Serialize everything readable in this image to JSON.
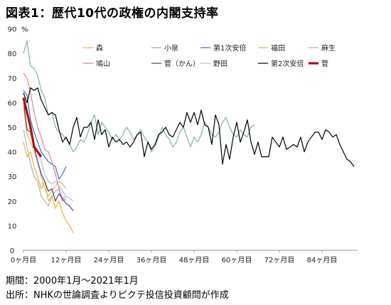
{
  "title": "図表1：歴代10代の政権の内閣支持率",
  "notes": {
    "period": "期間：2000年1月～2021年1月",
    "source": "出所：NHKの世論調査よりピクテ投信投資顧問が作成"
  },
  "chart_data": {
    "type": "line",
    "title": "図表1：歴代10代の政権の内閣支持率",
    "ylabel": "%",
    "xlabel": "",
    "ylim": [
      0,
      90
    ],
    "yticks": [
      0,
      10,
      20,
      30,
      40,
      50,
      60,
      70,
      80,
      90
    ],
    "xlim": [
      0,
      94
    ],
    "xticks": [
      {
        "value": 0,
        "label": "0ヶ月目"
      },
      {
        "value": 12,
        "label": "12ヶ月目"
      },
      {
        "value": 24,
        "label": "24ヶ月目"
      },
      {
        "value": 36,
        "label": "36ヶ月目"
      },
      {
        "value": 48,
        "label": "48ヶ月目"
      },
      {
        "value": 60,
        "label": "60ヶ月目"
      },
      {
        "value": 72,
        "label": "72ヶ月目"
      },
      {
        "value": 84,
        "label": "84ヶ月目"
      }
    ],
    "grid": false,
    "legend_position": "top",
    "series": [
      {
        "name": "森",
        "color": "#f0b429",
        "width": 1.2,
        "values": [
          44,
          38,
          40,
          34,
          30,
          25,
          28,
          20,
          22,
          17,
          20,
          15,
          12,
          10,
          7
        ]
      },
      {
        "name": "小泉",
        "color": "#7fb0a8",
        "width": 1.2,
        "values": [
          80,
          85,
          75,
          74,
          71,
          65,
          62,
          55,
          56,
          50,
          48,
          47,
          45,
          43,
          40,
          42,
          45,
          44,
          47,
          52,
          55,
          47,
          52,
          50,
          48,
          45,
          47,
          45,
          47,
          50,
          48,
          45,
          47,
          49,
          46,
          44,
          40,
          42,
          46,
          50,
          47,
          45,
          42,
          44,
          48,
          50,
          46,
          42,
          46,
          44,
          47,
          52,
          50,
          47,
          46,
          48,
          52,
          54,
          50,
          47,
          46,
          49,
          47,
          46,
          50,
          51
        ]
      },
      {
        "name": "第1次安倍",
        "color": "#3a6fc4",
        "width": 1.2,
        "values": [
          65,
          63,
          53,
          48,
          44,
          40,
          38,
          36,
          35,
          34,
          29,
          31,
          34
        ]
      },
      {
        "name": "福田",
        "color": "#c8c860",
        "width": 1.2,
        "values": [
          58,
          47,
          44,
          40,
          36,
          30,
          25,
          22,
          24,
          26,
          28,
          27,
          25
        ]
      },
      {
        "name": "麻生",
        "color": "#b0b0b0",
        "width": 1.2,
        "values": [
          49,
          42,
          35,
          30,
          28,
          22,
          20,
          18,
          22,
          24,
          25,
          21,
          22
        ]
      },
      {
        "name": "鳩山",
        "color": "#e08090",
        "width": 1.2,
        "values": [
          72,
          70,
          64,
          56,
          50,
          46,
          41,
          40,
          36,
          31,
          25,
          20,
          21
        ]
      },
      {
        "name": "菅（かん）",
        "color": "#5a3b70",
        "width": 1.2,
        "values": [
          61,
          49,
          48,
          42,
          36,
          31,
          28,
          24,
          25,
          20,
          23,
          21,
          19,
          18,
          16
        ]
      },
      {
        "name": "野田",
        "color": "#a9c0ea",
        "width": 1.2,
        "values": [
          60,
          58,
          47,
          43,
          40,
          36,
          31,
          28,
          27,
          28,
          26,
          24,
          22,
          21,
          20
        ]
      },
      {
        "name": "第2次安倍",
        "color": "#000000",
        "width": 1.2,
        "values": [
          64,
          60,
          66,
          65,
          66,
          61,
          58,
          55,
          56,
          55,
          49,
          44,
          46,
          43,
          50,
          54,
          46,
          50,
          50,
          52,
          45,
          53,
          47,
          49,
          42,
          46,
          44,
          45,
          43,
          44,
          42,
          44,
          47,
          48,
          38,
          44,
          41,
          43,
          47,
          48,
          50,
          47,
          46,
          49,
          52,
          50,
          56,
          52,
          56,
          51,
          57,
          51,
          50,
          43,
          55,
          51,
          35,
          43,
          37,
          46,
          52,
          44,
          48,
          53,
          44,
          39,
          44,
          38,
          38,
          38,
          46,
          44,
          42,
          46,
          41,
          42,
          43,
          42,
          46,
          40,
          44,
          46,
          48,
          48,
          45,
          49,
          48,
          46,
          47,
          43,
          40,
          37,
          36,
          34
        ]
      },
      {
        "name": "菅",
        "color": "#b01010",
        "width": 3.2,
        "values": [
          62,
          56,
          50,
          42,
          40,
          38
        ]
      }
    ]
  }
}
